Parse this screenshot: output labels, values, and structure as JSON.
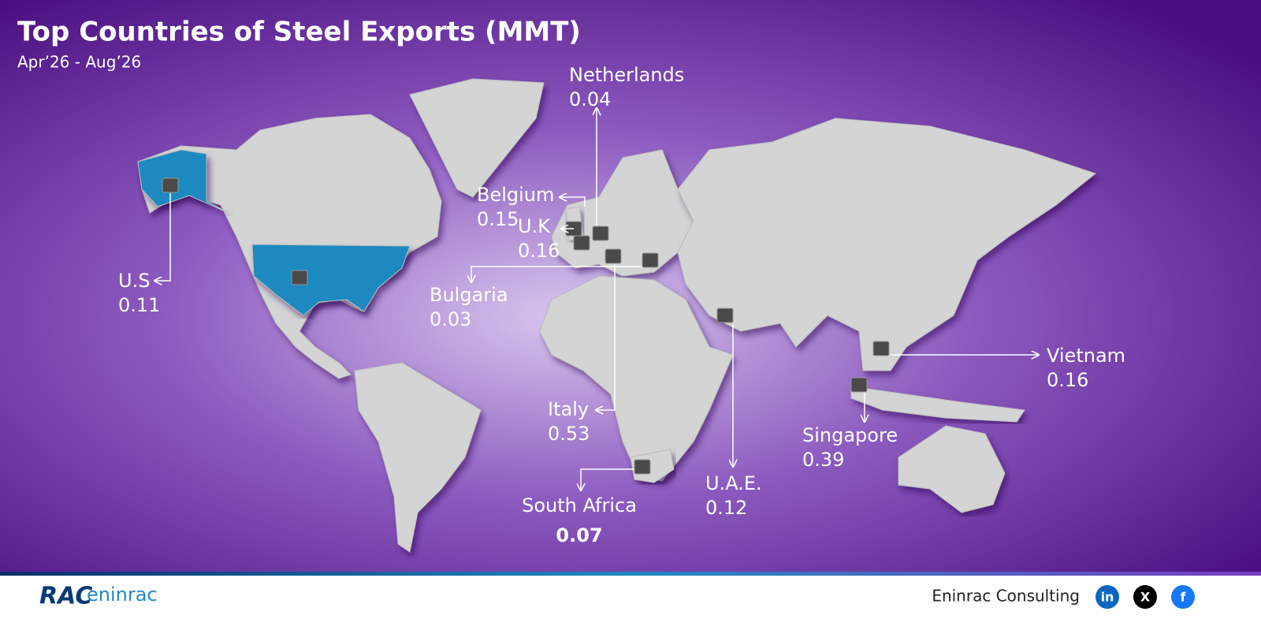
{
  "header": {
    "title": "Top Countries of Steel Exports (MMT)",
    "subtitle": "Apr’26 - Aug’26"
  },
  "countries": [
    {
      "name": "Netherlands",
      "value": 0.04
    },
    {
      "name": "Belgium",
      "value": 0.15
    },
    {
      "name": "U.K",
      "value": 0.16
    },
    {
      "name": "U.S",
      "value": 0.11
    },
    {
      "name": "Bulgaria",
      "value": 0.03
    },
    {
      "name": "Italy",
      "value": 0.53
    },
    {
      "name": "South Africa",
      "value": 0.07
    },
    {
      "name": "U.A.E.",
      "value": 0.12
    },
    {
      "name": "Singapore",
      "value": 0.39
    },
    {
      "name": "Vietnam",
      "value": 0.16
    }
  ],
  "footer": {
    "logo_mark": "RAC",
    "logo_text": "eninrac",
    "company": "Eninrac Consulting",
    "social": [
      "in",
      "X",
      "f"
    ]
  }
}
